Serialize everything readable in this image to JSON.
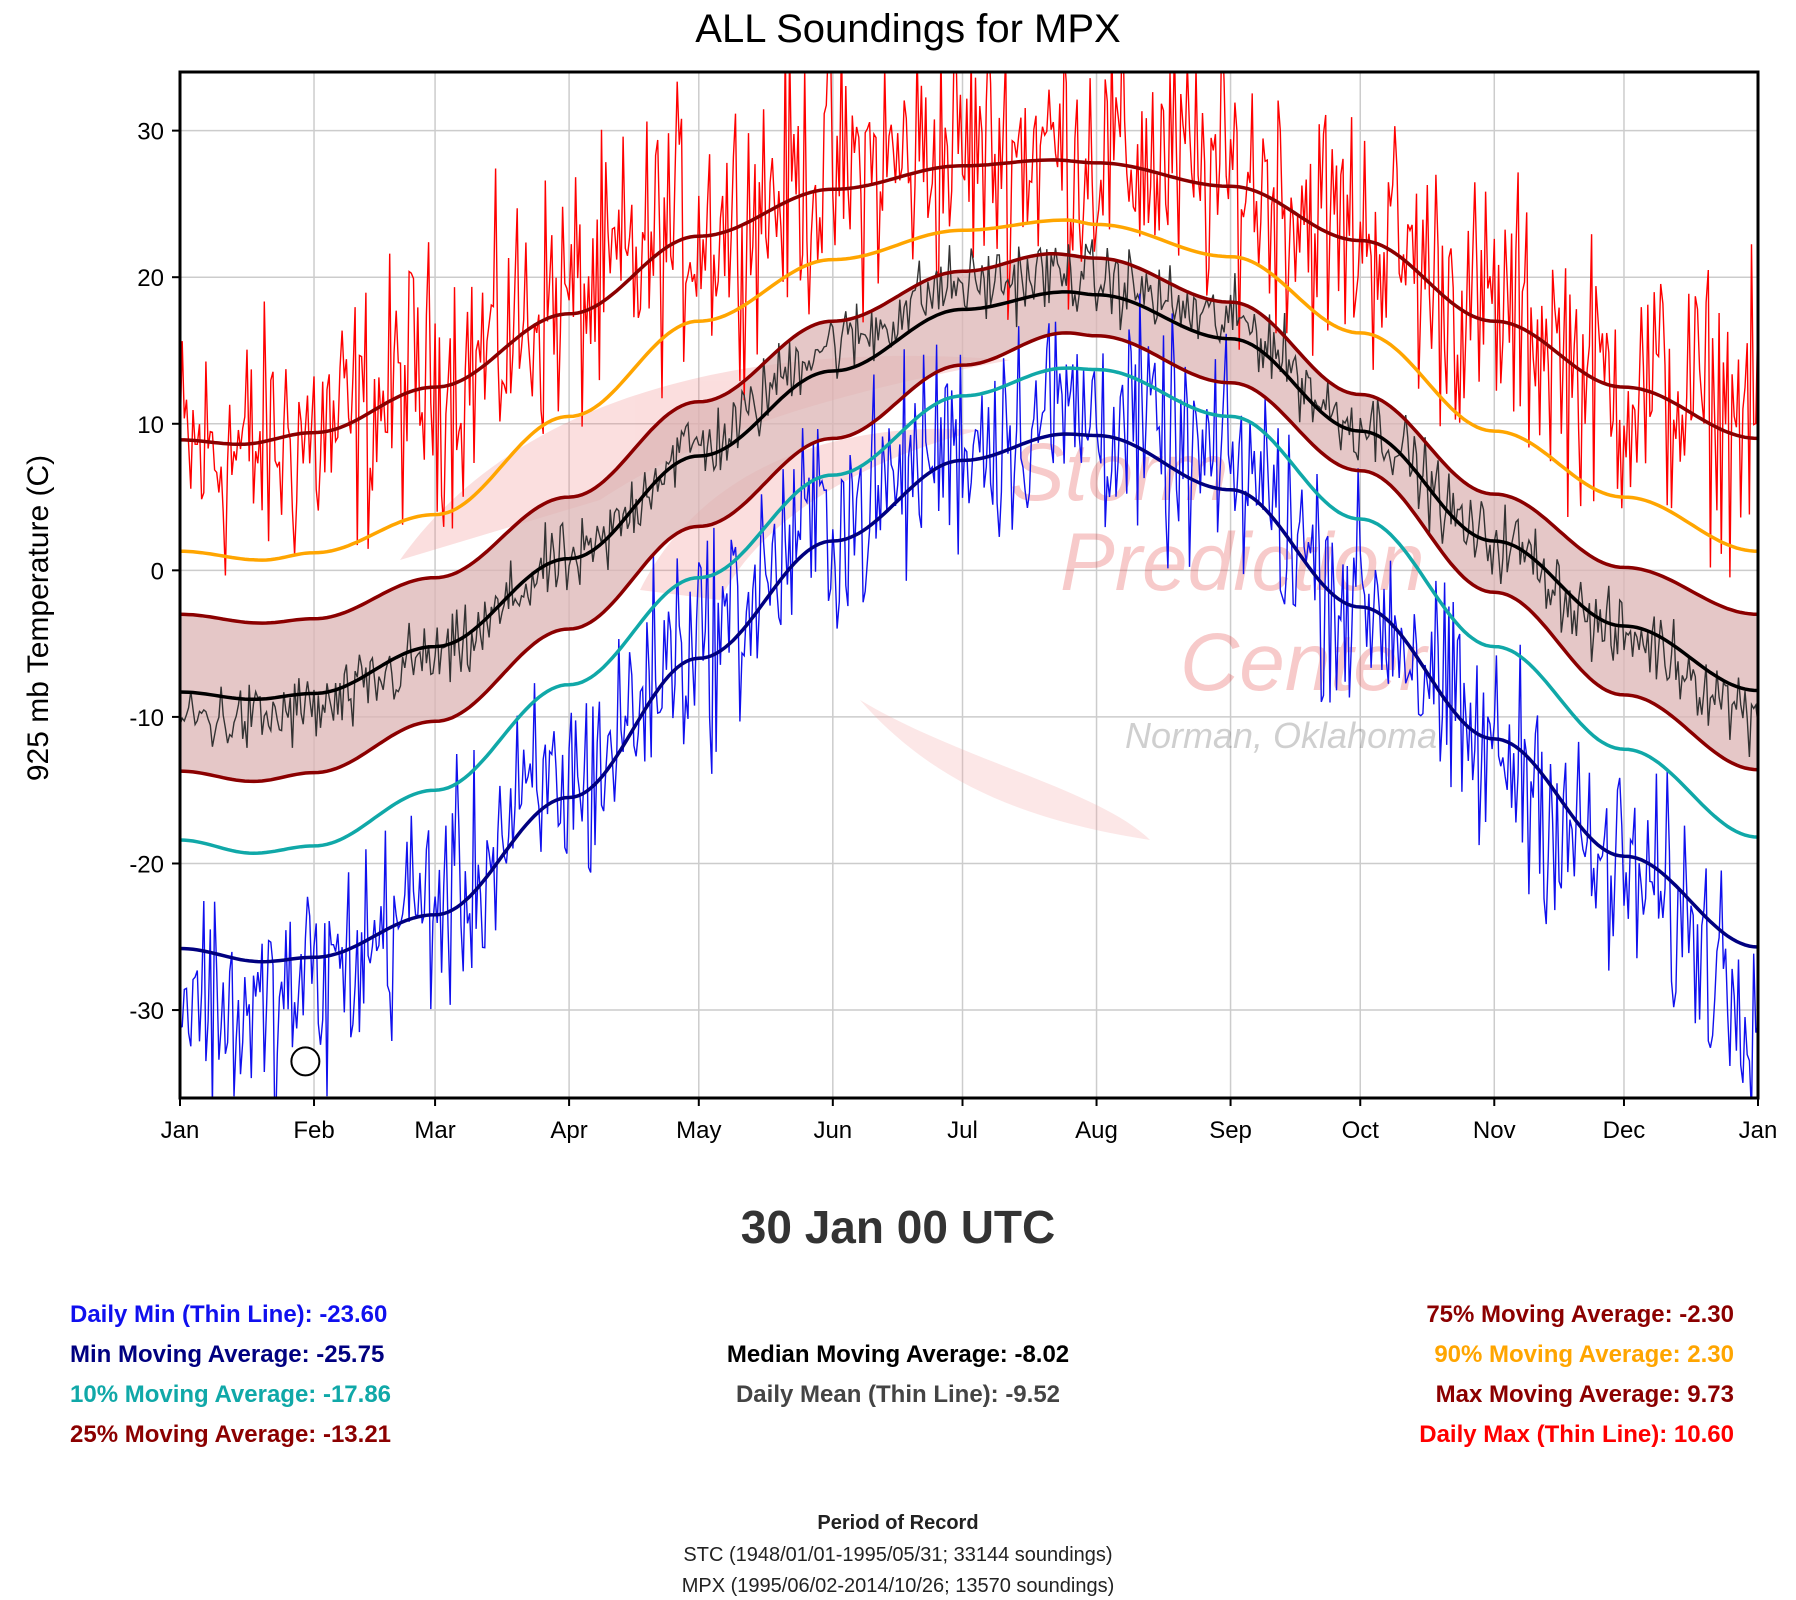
{
  "page": {
    "selected_date": "30 Jan 00 UTC",
    "stats_left": [
      {
        "label": "Daily Min (Thin Line): -23.60",
        "color": "#1010ee"
      },
      {
        "label": "Min Moving Average: -25.75",
        "color": "#000080"
      },
      {
        "label": "10% Moving Average: -17.86",
        "color": "#10a8a8"
      },
      {
        "label": "25% Moving Average: -13.21",
        "color": "#8b0000"
      }
    ],
    "stats_center": [
      {
        "label": "Median Moving Average: -8.02",
        "color": "#000000"
      },
      {
        "label": "Daily Mean (Thin Line): -9.52",
        "color": "#444444"
      }
    ],
    "stats_right": [
      {
        "label": "75% Moving Average: -2.30",
        "color": "#8b0000"
      },
      {
        "label": "90% Moving Average: 2.30",
        "color": "#ffa500"
      },
      {
        "label": "Max Moving Average: 9.73",
        "color": "#8b0000"
      },
      {
        "label": "Daily Max (Thin Line): 10.60",
        "color": "#ff0000"
      }
    ],
    "record": {
      "title": "Period of Record",
      "stc": "STC (1948/01/01-1995/05/31; 33144 soundings)",
      "mpx": "MPX (1995/06/02-2014/10/26; 13570 soundings)"
    }
  },
  "chart_data": {
    "type": "line",
    "title": "ALL Soundings for MPX",
    "ylabel": "925 mb Temperature (C)",
    "xlabel": "",
    "ylim": [
      -36,
      34
    ],
    "y_ticks": [
      -30,
      -20,
      -10,
      0,
      10,
      20,
      30
    ],
    "x_tick_labels": [
      "Jan",
      "Feb",
      "Mar",
      "Apr",
      "May",
      "Jun",
      "Jul",
      "Aug",
      "Sep",
      "Oct",
      "Nov",
      "Dec",
      "Jan"
    ],
    "x_tick_days": [
      1,
      32,
      60,
      91,
      121,
      152,
      182,
      213,
      244,
      274,
      305,
      335,
      366
    ],
    "xlim_days": [
      1,
      366
    ],
    "grid": true,
    "watermark": {
      "line1": "Storm",
      "line2": "Prediction",
      "line3": "Center",
      "line4": "Norman, Oklahoma"
    },
    "selected_point": {
      "day": 30,
      "value": -33.5
    },
    "smooth_series": [
      {
        "id": "max-ma",
        "color": "#8b0000",
        "x": [
          1,
          15,
          32,
          60,
          91,
          121,
          152,
          182,
          203,
          213,
          244,
          274,
          305,
          335,
          366
        ],
        "y": [
          8.9,
          8.6,
          9.4,
          12.5,
          17.5,
          22.8,
          26.0,
          27.6,
          28.0,
          27.8,
          26.2,
          22.5,
          17.0,
          12.5,
          9.0
        ]
      },
      {
        "id": "p90-ma",
        "color": "#ffa500",
        "x": [
          1,
          20,
          32,
          60,
          91,
          121,
          152,
          182,
          206,
          213,
          244,
          274,
          305,
          335,
          366
        ],
        "y": [
          1.3,
          0.7,
          1.2,
          3.8,
          10.5,
          17.0,
          21.2,
          23.2,
          23.9,
          23.6,
          21.4,
          16.2,
          9.5,
          5.0,
          1.3
        ]
      },
      {
        "id": "p75-ma",
        "color": "#8b0000",
        "x": [
          1,
          20,
          32,
          60,
          91,
          121,
          152,
          182,
          203,
          213,
          244,
          274,
          305,
          335,
          366
        ],
        "y": [
          -3.0,
          -3.6,
          -3.3,
          -0.5,
          5.0,
          11.5,
          17.0,
          20.4,
          21.6,
          21.3,
          18.3,
          12.0,
          5.2,
          0.2,
          -3.0
        ]
      },
      {
        "id": "median-ma",
        "color": "#000000",
        "x": [
          1,
          18,
          32,
          60,
          91,
          121,
          152,
          182,
          206,
          213,
          244,
          274,
          305,
          335,
          366
        ],
        "y": [
          -8.3,
          -8.8,
          -8.4,
          -5.2,
          0.8,
          7.8,
          13.6,
          17.8,
          19.0,
          18.8,
          15.8,
          9.5,
          2.0,
          -3.8,
          -8.2
        ]
      },
      {
        "id": "p25-ma",
        "color": "#8b0000",
        "x": [
          1,
          18,
          32,
          60,
          91,
          121,
          152,
          182,
          206,
          213,
          244,
          274,
          305,
          335,
          366
        ],
        "y": [
          -13.7,
          -14.4,
          -13.8,
          -10.3,
          -4.0,
          3.0,
          9.0,
          14.0,
          16.2,
          16.0,
          12.8,
          6.8,
          -1.5,
          -8.5,
          -13.6
        ]
      },
      {
        "id": "p10-ma",
        "color": "#10a8a8",
        "x": [
          1,
          18,
          32,
          60,
          91,
          121,
          152,
          182,
          206,
          213,
          244,
          274,
          305,
          335,
          366
        ],
        "y": [
          -18.4,
          -19.3,
          -18.8,
          -15.0,
          -7.8,
          -0.5,
          6.5,
          11.9,
          13.8,
          13.7,
          10.5,
          3.5,
          -5.2,
          -12.2,
          -18.2
        ]
      },
      {
        "id": "min-ma",
        "color": "#000080",
        "x": [
          1,
          20,
          32,
          60,
          91,
          121,
          152,
          182,
          206,
          213,
          244,
          274,
          305,
          335,
          366
        ],
        "y": [
          -25.8,
          -26.7,
          -26.4,
          -23.5,
          -15.5,
          -6.0,
          2.0,
          7.5,
          9.3,
          9.2,
          5.5,
          -2.5,
          -11.5,
          -19.5,
          -25.7
        ]
      }
    ],
    "daily_series": [
      {
        "id": "daily-max",
        "color": "#ff0000",
        "anchor_x": [
          1,
          15,
          32,
          60,
          91,
          121,
          152,
          182,
          203,
          213,
          244,
          274,
          305,
          335,
          366
        ],
        "anchor_y": [
          8.0,
          8.0,
          9.2,
          13.0,
          18.5,
          23.5,
          27.0,
          28.6,
          28.8,
          28.4,
          26.8,
          23.0,
          17.5,
          12.5,
          10.6
        ],
        "amplitude": 4.5
      },
      {
        "id": "daily-mean",
        "color": "#333333",
        "anchor_x": [
          1,
          18,
          32,
          60,
          91,
          121,
          152,
          182,
          206,
          213,
          244,
          274,
          305,
          335,
          366
        ],
        "anchor_y": [
          -10.0,
          -10.2,
          -9.5,
          -6.0,
          0.5,
          8.5,
          15.5,
          19.5,
          20.2,
          19.7,
          17.0,
          10.0,
          2.0,
          -4.5,
          -9.5
        ],
        "amplitude": 1.3
      },
      {
        "id": "daily-min",
        "color": "#1010ee",
        "anchor_x": [
          1,
          20,
          32,
          60,
          91,
          121,
          152,
          182,
          206,
          213,
          244,
          274,
          305,
          335,
          366
        ],
        "anchor_y": [
          -28.5,
          -30.5,
          -28.0,
          -22.5,
          -14.5,
          -4.5,
          3.5,
          9.0,
          11.0,
          10.5,
          7.0,
          -2.0,
          -12.5,
          -21.0,
          -28.0
        ],
        "amplitude": 3.8
      }
    ],
    "band": {
      "upper": "p75-ma",
      "lower": "p25-ma",
      "fill": "#dcb4b4"
    }
  }
}
